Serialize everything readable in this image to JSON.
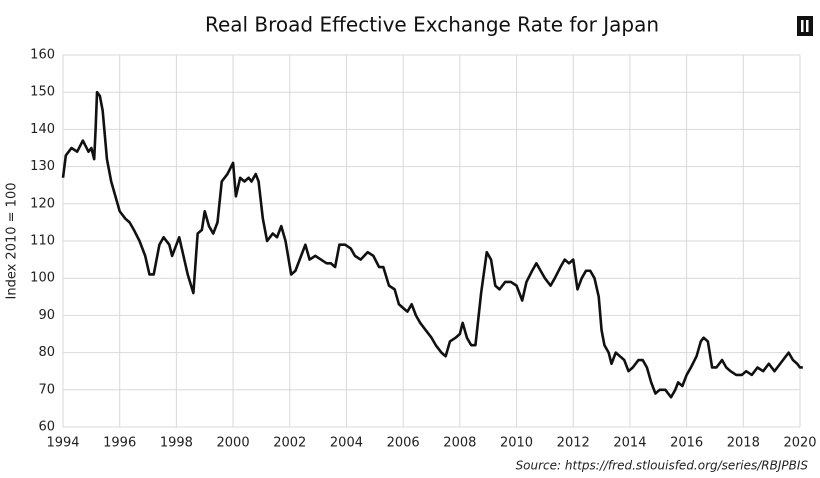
{
  "chart_data": {
    "type": "line",
    "title": "Real Broad Effective Exchange Rate for Japan",
    "y_label": "Index 2010 = 100",
    "source": "Source:  https://fred.stlouisfed.org/series/RBJPBIS",
    "xlim": [
      1994,
      2020
    ],
    "xticks": [
      1994,
      1996,
      1998,
      2000,
      2002,
      2004,
      2006,
      2008,
      2010,
      2012,
      2014,
      2016,
      2018,
      2020
    ],
    "ylim": [
      60,
      160
    ],
    "yticks": [
      60,
      70,
      80,
      90,
      100,
      110,
      120,
      130,
      140,
      150,
      160
    ],
    "grid": true,
    "x": [
      1994.0,
      1994.1,
      1994.3,
      1994.5,
      1994.7,
      1994.9,
      1995.0,
      1995.1,
      1995.15,
      1995.2,
      1995.3,
      1995.4,
      1995.55,
      1995.7,
      1995.85,
      1996.0,
      1996.2,
      1996.35,
      1996.5,
      1996.7,
      1996.9,
      1997.05,
      1997.2,
      1997.4,
      1997.55,
      1997.75,
      1997.85,
      1998.0,
      1998.1,
      1998.25,
      1998.4,
      1998.6,
      1998.75,
      1998.9,
      1999.0,
      1999.15,
      1999.3,
      1999.45,
      1999.6,
      1999.8,
      2000.0,
      2000.1,
      2000.25,
      2000.4,
      2000.55,
      2000.65,
      2000.8,
      2000.9,
      2001.05,
      2001.2,
      2001.4,
      2001.55,
      2001.7,
      2001.85,
      2002.05,
      2002.2,
      2002.4,
      2002.55,
      2002.7,
      2002.9,
      2003.1,
      2003.3,
      2003.45,
      2003.6,
      2003.75,
      2003.95,
      2004.15,
      2004.3,
      2004.5,
      2004.75,
      2004.95,
      2005.15,
      2005.3,
      2005.5,
      2005.7,
      2005.85,
      2006.0,
      2006.15,
      2006.3,
      2006.45,
      2006.6,
      2006.8,
      2007.0,
      2007.15,
      2007.35,
      2007.5,
      2007.65,
      2007.85,
      2008.0,
      2008.1,
      2008.25,
      2008.4,
      2008.55,
      2008.75,
      2008.95,
      2009.1,
      2009.25,
      2009.4,
      2009.6,
      2009.8,
      2010.0,
      2010.2,
      2010.35,
      2010.55,
      2010.7,
      2010.85,
      2011.0,
      2011.2,
      2011.35,
      2011.55,
      2011.7,
      2011.85,
      2012.0,
      2012.15,
      2012.3,
      2012.45,
      2012.6,
      2012.75,
      2012.9,
      2013.0,
      2013.1,
      2013.25,
      2013.35,
      2013.5,
      2013.65,
      2013.8,
      2013.95,
      2014.1,
      2014.3,
      2014.45,
      2014.6,
      2014.75,
      2014.9,
      2015.05,
      2015.25,
      2015.45,
      2015.6,
      2015.7,
      2015.85,
      2016.0,
      2016.15,
      2016.35,
      2016.5,
      2016.6,
      2016.75,
      2016.9,
      2017.05,
      2017.25,
      2017.4,
      2017.55,
      2017.75,
      2017.95,
      2018.1,
      2018.3,
      2018.5,
      2018.7,
      2018.9,
      2019.1,
      2019.3,
      2019.5,
      2019.6,
      2019.75,
      2019.9,
      2020.0,
      2020.1
    ],
    "series": [
      {
        "name": "RBJPBIS",
        "color": "#111111",
        "values": [
          127,
          133,
          135,
          134,
          137,
          134,
          135,
          132,
          140,
          150,
          149,
          145,
          132,
          126,
          122,
          118,
          116,
          115,
          113,
          110,
          106,
          101,
          101,
          109,
          111,
          109,
          106,
          109,
          111,
          106,
          101,
          96,
          112,
          113,
          118,
          114,
          112,
          115,
          126,
          128,
          131,
          122,
          127,
          126,
          127,
          126,
          128,
          126,
          116,
          110,
          112,
          111,
          114,
          110,
          101,
          102,
          106,
          109,
          105,
          106,
          105,
          104,
          104,
          103,
          109,
          109,
          108,
          106,
          105,
          107,
          106,
          103,
          103,
          98,
          97,
          93,
          92,
          91,
          93,
          90,
          88,
          86,
          84,
          82,
          80,
          79,
          83,
          84,
          85,
          88,
          84,
          82,
          82,
          96,
          107,
          105,
          98,
          97,
          99,
          99,
          98,
          94,
          99,
          102,
          104,
          102,
          100,
          98,
          100,
          103,
          105,
          104,
          105,
          97,
          100,
          102,
          102,
          100,
          95,
          86,
          82,
          80,
          77,
          80,
          79,
          78,
          75,
          76,
          78,
          78,
          76,
          72,
          69,
          70,
          70,
          68,
          70,
          72,
          71,
          74,
          76,
          79,
          83,
          84,
          83,
          76,
          76,
          78,
          76,
          75,
          74,
          74,
          75,
          74,
          76,
          75,
          77,
          75,
          77,
          79,
          80,
          78,
          77,
          76,
          76
        ]
      }
    ]
  }
}
